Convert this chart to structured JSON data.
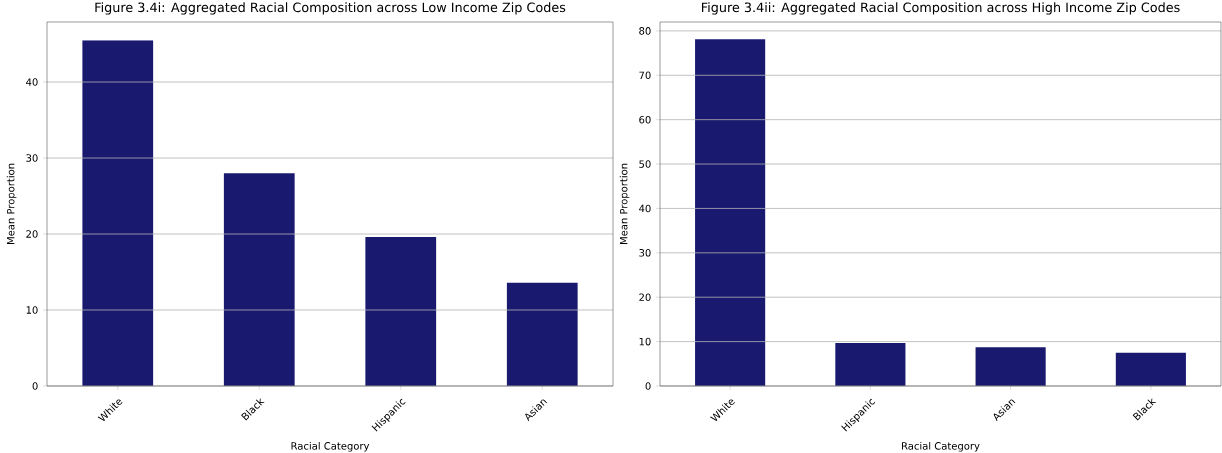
{
  "chart_data": [
    {
      "type": "bar",
      "title": "Figure 3.4i: Aggregated Racial Composition across Low Income Zip Codes",
      "xlabel": "Racial Category",
      "ylabel": "Mean Proportion",
      "categories": [
        "White",
        "Black",
        "Hispanic",
        "Asian"
      ],
      "values": [
        45.5,
        28.0,
        19.6,
        13.6
      ],
      "color": "#191970",
      "ylim": [
        0,
        47.9
      ],
      "yticks": [
        0,
        10,
        20,
        30,
        40
      ],
      "grid": "y"
    },
    {
      "type": "bar",
      "title": "Figure 3.4ii: Aggregated Racial Composition across High Income Zip Codes",
      "xlabel": "Racial Category",
      "ylabel": "Mean Proportion",
      "categories": [
        "White",
        "Hispanic",
        "Asian",
        "Black"
      ],
      "values": [
        78.1,
        9.7,
        8.7,
        7.5
      ],
      "color": "#191970",
      "ylim": [
        0,
        82
      ],
      "yticks": [
        0,
        10,
        20,
        30,
        40,
        50,
        60,
        70,
        80
      ],
      "grid": "y"
    }
  ]
}
